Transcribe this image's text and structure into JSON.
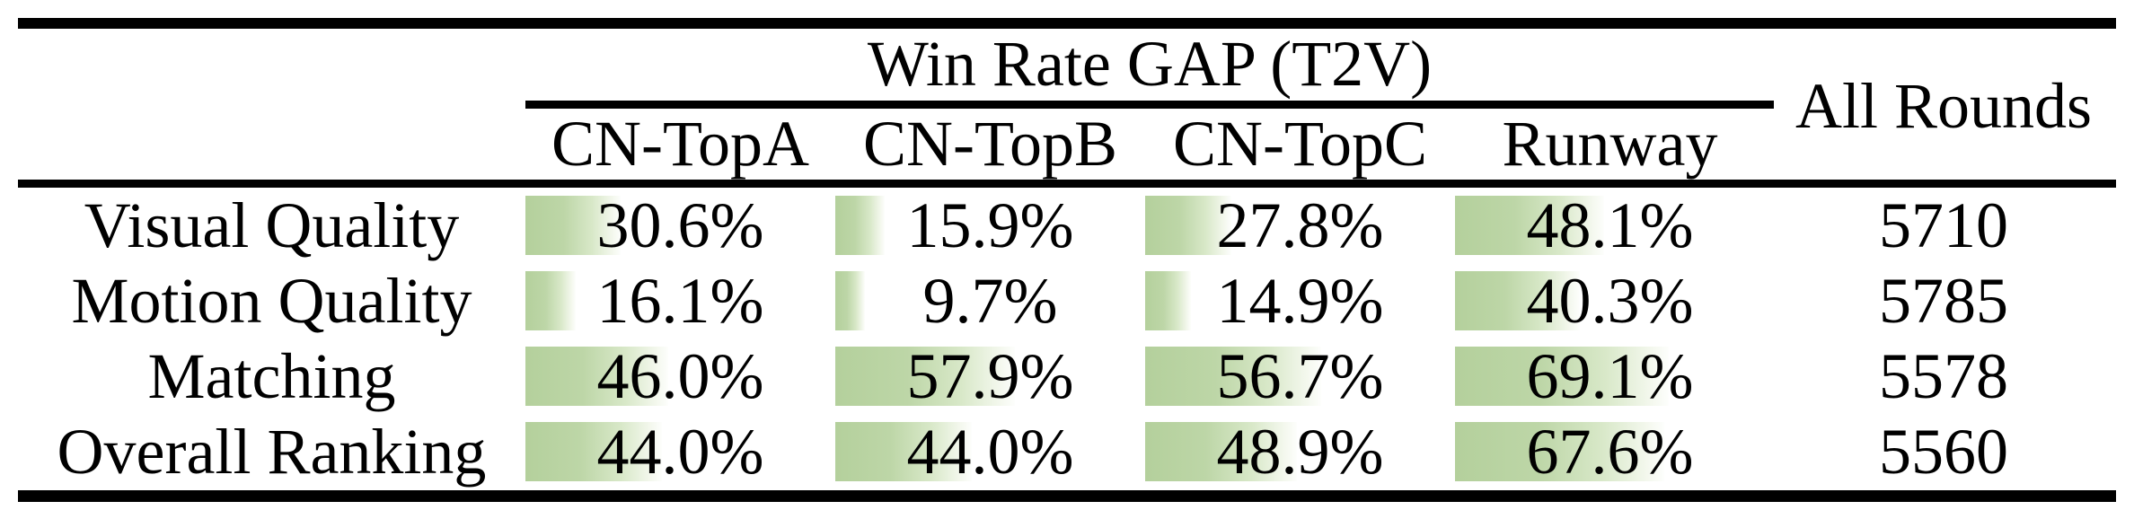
{
  "table": {
    "group_header": "Win Rate GAP (T2V)",
    "all_rounds_header": "All Rounds",
    "columns": [
      "CN-TopA",
      "CN-TopB",
      "CN-TopC",
      "Runway"
    ],
    "rows": [
      {
        "label": "Visual Quality",
        "cells": [
          {
            "text": "30.6%",
            "pct": 30.6
          },
          {
            "text": "15.9%",
            "pct": 15.9
          },
          {
            "text": "27.8%",
            "pct": 27.8
          },
          {
            "text": "48.1%",
            "pct": 48.1
          }
        ],
        "all_rounds": "5710"
      },
      {
        "label": "Motion Quality",
        "cells": [
          {
            "text": "16.1%",
            "pct": 16.1
          },
          {
            "text": "9.7%",
            "pct": 9.7
          },
          {
            "text": "14.9%",
            "pct": 14.9
          },
          {
            "text": "40.3%",
            "pct": 40.3
          }
        ],
        "all_rounds": "5785"
      },
      {
        "label": "Matching",
        "cells": [
          {
            "text": "46.0%",
            "pct": 46.0
          },
          {
            "text": "57.9%",
            "pct": 57.9
          },
          {
            "text": "56.7%",
            "pct": 56.7
          },
          {
            "text": "69.1%",
            "pct": 69.1
          }
        ],
        "all_rounds": "5578"
      },
      {
        "label": "Overall Ranking",
        "cells": [
          {
            "text": "44.0%",
            "pct": 44.0
          },
          {
            "text": "44.0%",
            "pct": 44.0
          },
          {
            "text": "48.9%",
            "pct": 48.9
          },
          {
            "text": "67.6%",
            "pct": 67.6
          }
        ],
        "all_rounds": "5560"
      }
    ],
    "colors": {
      "bar_green": "#b4d09c",
      "bar_fade": "#fdfefc",
      "rule_black": "#000000",
      "text": "#000000",
      "background": "#ffffff"
    }
  },
  "chart_data": {
    "type": "table",
    "title": "Win Rate GAP (T2V)",
    "columns": [
      "CN-TopA",
      "CN-TopB",
      "CN-TopC",
      "Runway",
      "All Rounds"
    ],
    "row_labels": [
      "Visual Quality",
      "Motion Quality",
      "Matching",
      "Overall Ranking"
    ],
    "series": [
      {
        "name": "CN-TopA",
        "values": [
          30.6,
          16.1,
          46.0,
          44.0
        ]
      },
      {
        "name": "CN-TopB",
        "values": [
          15.9,
          9.7,
          57.9,
          44.0
        ]
      },
      {
        "name": "CN-TopC",
        "values": [
          27.8,
          14.9,
          56.7,
          48.9
        ]
      },
      {
        "name": "Runway",
        "values": [
          48.1,
          40.3,
          69.1,
          67.6
        ]
      }
    ],
    "all_rounds": [
      5710,
      5785,
      5578,
      5560
    ],
    "value_unit": "%",
    "bar_scale": "cell width = 100%, in-cell green data bars left-aligned",
    "legend_position": "none",
    "grid": false
  }
}
